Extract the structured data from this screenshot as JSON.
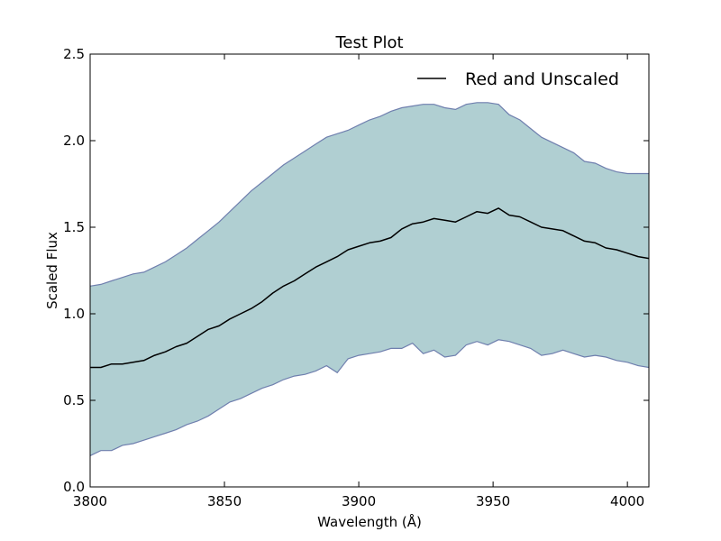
{
  "chart_data": {
    "type": "line",
    "title": "Test Plot",
    "xlabel": "Wavelength (Å)",
    "ylabel": "Scaled Flux",
    "xlim": [
      3800,
      4008
    ],
    "ylim": [
      0.0,
      2.5
    ],
    "xticks": [
      3800,
      3850,
      3900,
      3950,
      4000
    ],
    "xtick_labels": [
      "3800",
      "3850",
      "3900",
      "3950",
      "4000"
    ],
    "yticks": [
      0.0,
      0.5,
      1.0,
      1.5,
      2.0,
      2.5
    ],
    "ytick_labels": [
      "0.0",
      "0.5",
      "1.0",
      "1.5",
      "2.0",
      "2.5"
    ],
    "grid": false,
    "legend": {
      "position": "top-right",
      "entries": [
        "Red and Unscaled"
      ]
    },
    "series": [
      {
        "name": "Red and Unscaled",
        "color": "#000000",
        "x": [
          3800,
          3804,
          3808,
          3812,
          3816,
          3820,
          3824,
          3828,
          3832,
          3836,
          3840,
          3844,
          3848,
          3852,
          3856,
          3860,
          3864,
          3868,
          3872,
          3876,
          3880,
          3884,
          3888,
          3892,
          3896,
          3900,
          3904,
          3908,
          3912,
          3916,
          3920,
          3924,
          3928,
          3932,
          3936,
          3940,
          3944,
          3948,
          3952,
          3956,
          3960,
          3964,
          3968,
          3972,
          3976,
          3980,
          3984,
          3988,
          3992,
          3996,
          4000,
          4004,
          4008
        ],
        "y": [
          0.69,
          0.69,
          0.71,
          0.71,
          0.72,
          0.73,
          0.76,
          0.78,
          0.81,
          0.83,
          0.87,
          0.91,
          0.93,
          0.97,
          1.0,
          1.03,
          1.07,
          1.12,
          1.16,
          1.19,
          1.23,
          1.27,
          1.3,
          1.33,
          1.37,
          1.39,
          1.41,
          1.42,
          1.44,
          1.49,
          1.52,
          1.53,
          1.55,
          1.54,
          1.53,
          1.56,
          1.59,
          1.58,
          1.61,
          1.57,
          1.56,
          1.53,
          1.5,
          1.49,
          1.48,
          1.45,
          1.42,
          1.41,
          1.38,
          1.37,
          1.35,
          1.33,
          1.32
        ]
      }
    ],
    "band": {
      "fill_color": "#b0cfd2",
      "edge_color": "#6f7fae",
      "x": [
        3800,
        3804,
        3808,
        3812,
        3816,
        3820,
        3824,
        3828,
        3832,
        3836,
        3840,
        3844,
        3848,
        3852,
        3856,
        3860,
        3864,
        3868,
        3872,
        3876,
        3880,
        3884,
        3888,
        3892,
        3896,
        3900,
        3904,
        3908,
        3912,
        3916,
        3920,
        3924,
        3928,
        3932,
        3936,
        3940,
        3944,
        3948,
        3952,
        3956,
        3960,
        3964,
        3968,
        3972,
        3976,
        3980,
        3984,
        3988,
        3992,
        3996,
        4000,
        4004,
        4008
      ],
      "upper": [
        1.16,
        1.17,
        1.19,
        1.21,
        1.23,
        1.24,
        1.27,
        1.3,
        1.34,
        1.38,
        1.43,
        1.48,
        1.53,
        1.59,
        1.65,
        1.71,
        1.76,
        1.81,
        1.86,
        1.9,
        1.94,
        1.98,
        2.02,
        2.04,
        2.06,
        2.09,
        2.12,
        2.14,
        2.17,
        2.19,
        2.2,
        2.21,
        2.21,
        2.19,
        2.18,
        2.21,
        2.22,
        2.22,
        2.21,
        2.15,
        2.12,
        2.07,
        2.02,
        1.99,
        1.96,
        1.93,
        1.88,
        1.87,
        1.84,
        1.82,
        1.81,
        1.81,
        1.81
      ],
      "lower": [
        0.18,
        0.21,
        0.21,
        0.24,
        0.25,
        0.27,
        0.29,
        0.31,
        0.33,
        0.36,
        0.38,
        0.41,
        0.45,
        0.49,
        0.51,
        0.54,
        0.57,
        0.59,
        0.62,
        0.64,
        0.65,
        0.67,
        0.7,
        0.66,
        0.74,
        0.76,
        0.77,
        0.78,
        0.8,
        0.8,
        0.83,
        0.77,
        0.79,
        0.75,
        0.76,
        0.82,
        0.84,
        0.82,
        0.85,
        0.84,
        0.82,
        0.8,
        0.76,
        0.77,
        0.79,
        0.77,
        0.75,
        0.76,
        0.75,
        0.73,
        0.72,
        0.7,
        0.69
      ]
    }
  }
}
